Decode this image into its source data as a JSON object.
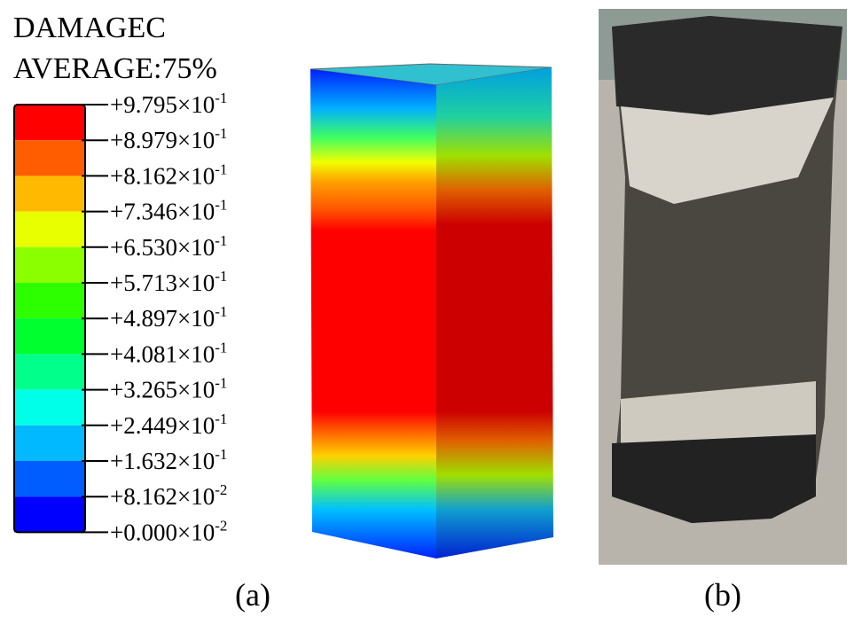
{
  "figure": {
    "title_lines": [
      "DAMAGEC",
      "AVERAGE:75%"
    ],
    "legend": {
      "colors": [
        "#ff0000",
        "#ff5d00",
        "#ffb900",
        "#e8ff00",
        "#8bff00",
        "#2eff00",
        "#00ff2e",
        "#00ff8b",
        "#00ffe8",
        "#00b9ff",
        "#005dff",
        "#0000ff"
      ],
      "labels": [
        {
          "base": "+9.795×10",
          "exp": "-1"
        },
        {
          "base": "+8.979×10",
          "exp": "-1"
        },
        {
          "base": "+8.162×10",
          "exp": "-1"
        },
        {
          "base": "+7.346×10",
          "exp": "-1"
        },
        {
          "base": "+6.530×10",
          "exp": "-1"
        },
        {
          "base": "+5.713×10",
          "exp": "-1"
        },
        {
          "base": "+4.897×10",
          "exp": "-1"
        },
        {
          "base": "+4.081×10",
          "exp": "-1"
        },
        {
          "base": "+3.265×10",
          "exp": "-1"
        },
        {
          "base": "+2.449×10",
          "exp": "-1"
        },
        {
          "base": "+1.632×10",
          "exp": "-1"
        },
        {
          "base": "+8.162×10",
          "exp": "-2"
        },
        {
          "base": "+0.000×10",
          "exp": "-2"
        }
      ]
    },
    "panel_labels": [
      "(a)",
      "(b)"
    ]
  }
}
